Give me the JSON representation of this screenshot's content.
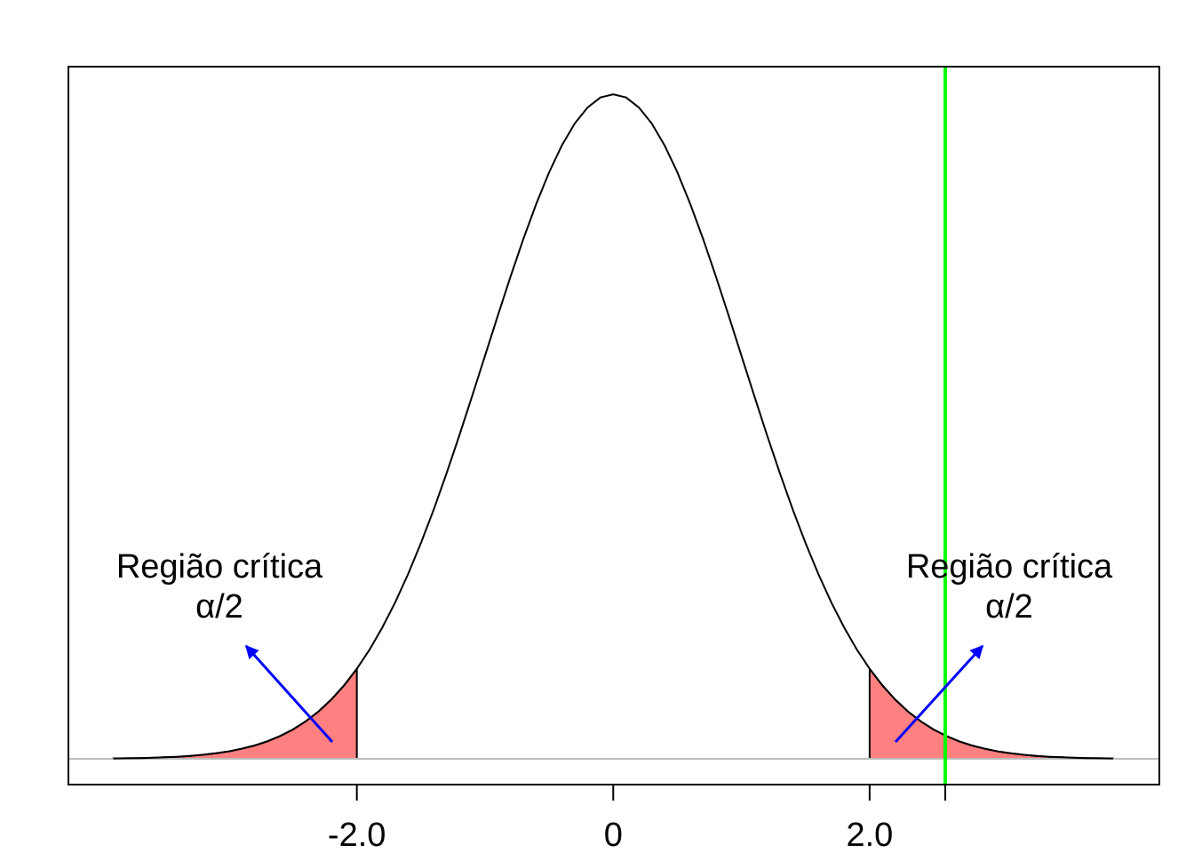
{
  "chart_data": {
    "type": "density",
    "x": [
      -3.9,
      -3.8,
      -3.7,
      -3.6,
      -3.5,
      -3.4,
      -3.3,
      -3.2,
      -3.1,
      -3.0,
      -2.9,
      -2.8,
      -2.7,
      -2.6,
      -2.5,
      -2.4,
      -2.3,
      -2.2,
      -2.1,
      -2.0,
      -1.9,
      -1.8,
      -1.7,
      -1.6,
      -1.5,
      -1.4,
      -1.3,
      -1.2,
      -1.1,
      -1.0,
      -0.9,
      -0.8,
      -0.7,
      -0.6,
      -0.5,
      -0.4,
      -0.3,
      -0.2,
      -0.1,
      0,
      0.1,
      0.2,
      0.3,
      0.4,
      0.5,
      0.6,
      0.7,
      0.8,
      0.9,
      1.0,
      1.1,
      1.2,
      1.3,
      1.4,
      1.5,
      1.6,
      1.7,
      1.8,
      1.9,
      2.0,
      2.1,
      2.2,
      2.3,
      2.4,
      2.5,
      2.6,
      2.7,
      2.8,
      2.9,
      3.0,
      3.1,
      3.2,
      3.3,
      3.4,
      3.5,
      3.6,
      3.7,
      3.8,
      3.9
    ],
    "values": [
      0.0002,
      0.0003,
      0.0004,
      0.0006,
      0.0009,
      0.0012,
      0.0017,
      0.0024,
      0.0033,
      0.0044,
      0.006,
      0.0079,
      0.0104,
      0.0136,
      0.0175,
      0.0224,
      0.0283,
      0.0355,
      0.044,
      0.054,
      0.0656,
      0.079,
      0.094,
      0.1109,
      0.1295,
      0.1497,
      0.1714,
      0.1942,
      0.2179,
      0.242,
      0.2661,
      0.2897,
      0.3123,
      0.3332,
      0.3521,
      0.3683,
      0.3814,
      0.391,
      0.397,
      0.3989,
      0.397,
      0.391,
      0.3814,
      0.3683,
      0.3521,
      0.3332,
      0.3123,
      0.2897,
      0.2661,
      0.242,
      0.2179,
      0.1942,
      0.1714,
      0.1497,
      0.1295,
      0.1109,
      0.094,
      0.079,
      0.0656,
      0.054,
      0.044,
      0.0355,
      0.0283,
      0.0224,
      0.0175,
      0.0136,
      0.0104,
      0.0079,
      0.006,
      0.0044,
      0.0033,
      0.0024,
      0.0017,
      0.0012,
      0.0009,
      0.0006,
      0.0004,
      0.0003,
      0.0002
    ],
    "color": "#000000",
    "critical_values": [
      -2.0,
      2.0
    ],
    "shade_color": "#ff8080",
    "observed": 2.59,
    "observed_color": "#00ff00",
    "baseline": 0,
    "baseline_color": "#bebebe",
    "xlim": [
      -4.25,
      4.26
    ],
    "ylim": [
      -0.0155,
      0.4155
    ],
    "xticks": [
      {
        "value": -2,
        "label": "-2.0"
      },
      0,
      {
        "value": 2,
        "label": "2.0"
      }
    ],
    "annotations": [
      {
        "lines": [
          "Região crítica",
          "α/2"
        ]
      },
      {
        "lines": [
          "Região crítica",
          "α/2"
        ]
      }
    ],
    "arrow_color": "#0000ff"
  }
}
